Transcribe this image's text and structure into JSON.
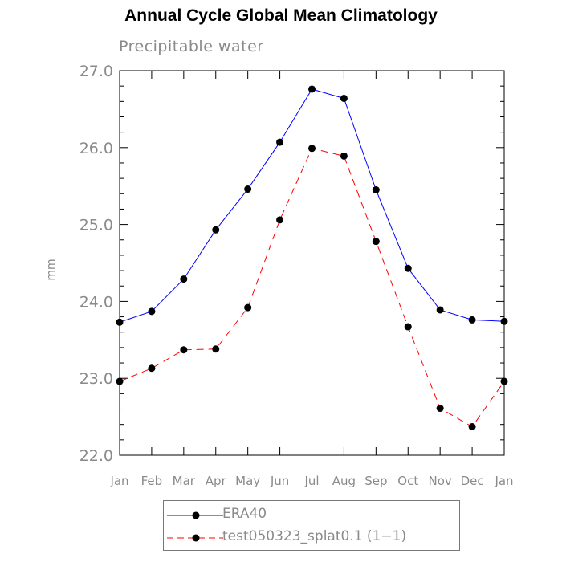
{
  "chart_data": {
    "type": "line",
    "title": "Annual Cycle Global Mean Climatology",
    "subtitle": "Precipitable water",
    "ylabel": "mm",
    "xlabel": "",
    "categories": [
      "Jan",
      "Feb",
      "Mar",
      "Apr",
      "May",
      "Jun",
      "Jul",
      "Aug",
      "Sep",
      "Oct",
      "Nov",
      "Dec",
      "Jan"
    ],
    "ylim": [
      22.0,
      27.0
    ],
    "yticks": [
      "22.0",
      "23.0",
      "24.0",
      "25.0",
      "26.0",
      "27.0"
    ],
    "series": [
      {
        "name": "ERA40",
        "color": "#0000ff",
        "style": "solid",
        "marker": "filled-circle",
        "values": [
          23.73,
          23.87,
          24.29,
          24.93,
          25.46,
          26.07,
          26.76,
          26.64,
          25.45,
          24.43,
          23.89,
          23.76,
          23.74
        ]
      },
      {
        "name": "test050323_splat0.1 (1−1)",
        "color": "#ff0000",
        "style": "dashed",
        "marker": "filled-circle",
        "values": [
          22.96,
          23.13,
          23.37,
          23.38,
          23.92,
          25.06,
          25.99,
          25.89,
          24.78,
          23.67,
          22.61,
          22.37,
          22.96
        ]
      }
    ],
    "grid": false,
    "legend_position": "bottom"
  }
}
